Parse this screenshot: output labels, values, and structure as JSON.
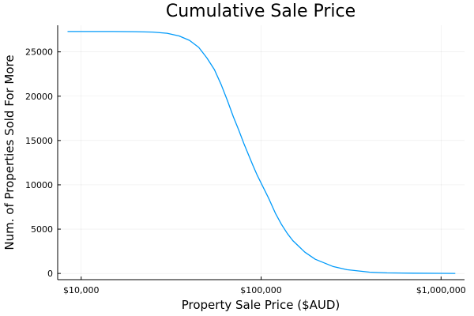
{
  "chart_data": {
    "type": "line",
    "title": "Cumulative Sale Price",
    "xlabel": "Property Sale Price ($AUD)",
    "ylabel": "Num. of Properties Sold For More",
    "x_scale": "log",
    "xlim": [
      7400,
      1350000
    ],
    "ylim": [
      -700,
      28000
    ],
    "grid": true,
    "legend": "none",
    "x_ticks": [
      {
        "value": 10000,
        "label": "$10,000"
      },
      {
        "value": 100000,
        "label": "$100,000"
      },
      {
        "value": 1000000,
        "label": "$1,000,000"
      }
    ],
    "y_ticks": [
      {
        "value": 0,
        "label": "0"
      },
      {
        "value": 5000,
        "label": "5000"
      },
      {
        "value": 10000,
        "label": "10000"
      },
      {
        "value": 15000,
        "label": "15000"
      },
      {
        "value": 20000,
        "label": "20000"
      },
      {
        "value": 25000,
        "label": "25000"
      }
    ],
    "series": [
      {
        "color": "#009AFA",
        "x": [
          8400,
          10000,
          15000,
          20000,
          25000,
          30000,
          35000,
          40000,
          45000,
          50000,
          55000,
          60000,
          65000,
          70000,
          75000,
          80000,
          85000,
          90000,
          95000,
          100000,
          110000,
          120000,
          130000,
          140000,
          150000,
          175000,
          200000,
          250000,
          300000,
          400000,
          500000,
          700000,
          1000000,
          1200000
        ],
        "y": [
          27300,
          27300,
          27300,
          27280,
          27230,
          27100,
          26800,
          26300,
          25500,
          24300,
          23000,
          21300,
          19500,
          17700,
          16200,
          14700,
          13400,
          12200,
          11100,
          10200,
          8500,
          6800,
          5500,
          4500,
          3700,
          2400,
          1600,
          800,
          420,
          150,
          70,
          30,
          10,
          5
        ]
      }
    ]
  }
}
